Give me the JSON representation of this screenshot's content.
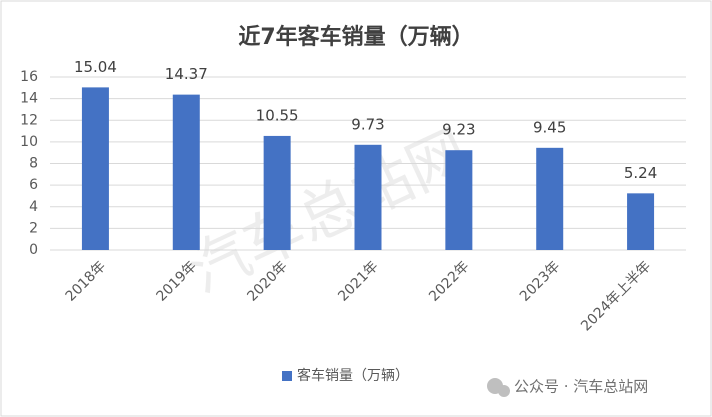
{
  "chart_data": {
    "type": "bar",
    "title": "近7年客车销量（万辆）",
    "categories": [
      "2018年",
      "2019年",
      "2020年",
      "2021年",
      "2022年",
      "2023年",
      "2024年上半年"
    ],
    "series": [
      {
        "name": "客车销量（万辆）",
        "color": "#4472c4",
        "values": [
          15.04,
          14.37,
          10.55,
          9.73,
          9.23,
          9.45,
          5.24
        ]
      }
    ],
    "ylim": [
      0,
      16
    ],
    "yticks": [
      0,
      2,
      4,
      6,
      8,
      10,
      12,
      14,
      16
    ],
    "grid": true,
    "legend": "bottom"
  },
  "watermark": "汽车总站网",
  "credit": "公众号 · 汽车总站网"
}
